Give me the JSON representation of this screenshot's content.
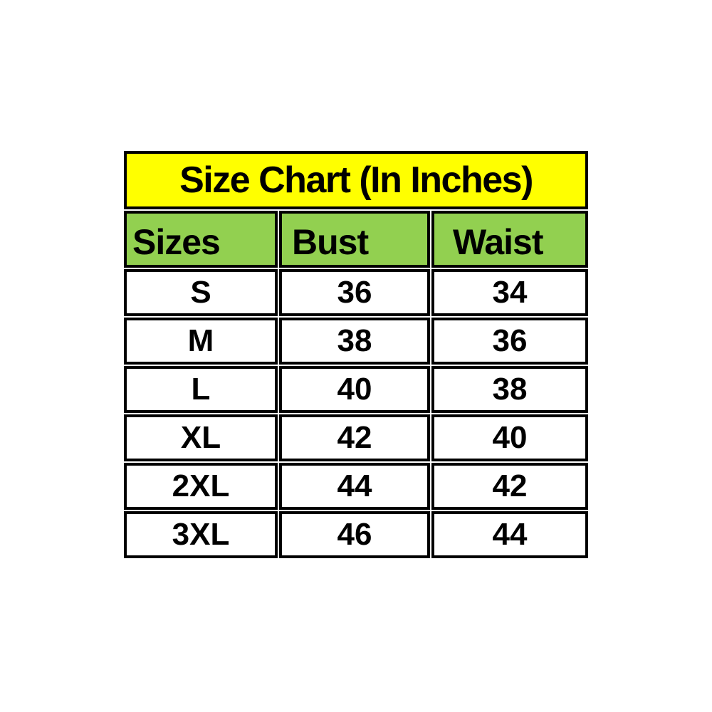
{
  "chart_data": {
    "type": "table",
    "title": "Size Chart (In Inches)",
    "columns": [
      "Sizes",
      "Bust",
      "Waist"
    ],
    "rows": [
      [
        "S",
        "36",
        "34"
      ],
      [
        "M",
        "38",
        "36"
      ],
      [
        "L",
        "40",
        "38"
      ],
      [
        "XL",
        "42",
        "40"
      ],
      [
        "2XL",
        "44",
        "42"
      ],
      [
        "3XL",
        "46",
        "44"
      ]
    ],
    "units": "inches",
    "layout": "title banner row, header row, 6 data rows; 3 equal columns"
  },
  "colors": {
    "title_bg": "#ffff00",
    "header_bg": "#92d050",
    "border": "#000000",
    "text": "#000000",
    "page_bg": "#ffffff"
  }
}
